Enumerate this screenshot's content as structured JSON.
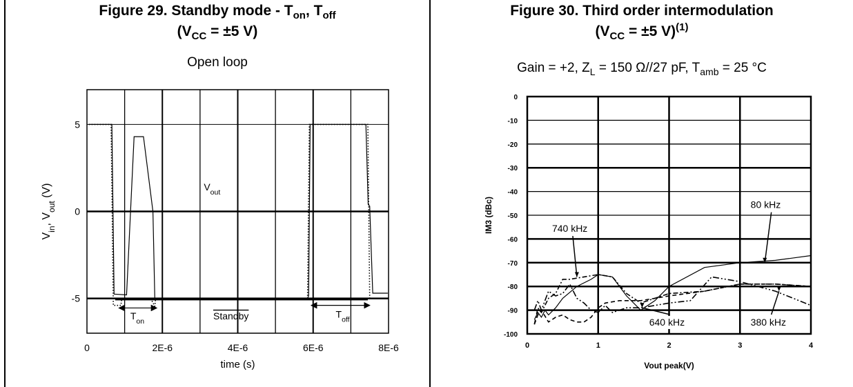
{
  "left": {
    "title": {
      "pre": "Figure 29. Standby mode - T",
      "sub1": "on",
      "mid": ", T",
      "sub2": "off"
    },
    "title2": {
      "pre": "(V",
      "sub": "CC",
      "post": " = ±5 V)"
    },
    "subtitle": "Open loop"
  },
  "right": {
    "title": "Figure 30. Third order intermodulation",
    "title2": {
      "pre": "(V",
      "sub": "CC",
      "post": " = ±5 V)",
      "sup": "(1)"
    },
    "subtitle": {
      "p1": "Gain = +2, Z",
      "s1": "L",
      "p2": " = 150 Ω//27 pF, T",
      "s2": "amb",
      "p3": " = 25 °C"
    }
  },
  "chart_data": [
    {
      "type": "line",
      "title": "",
      "xlabel": "time (s)",
      "ylabel": {
        "v1": "V",
        "s1": "in",
        "mid": ", V",
        "s2": "out",
        "unit": "  (V)"
      },
      "xlim": [
        0,
        8e-06
      ],
      "ylim": [
        -7,
        7
      ],
      "x_ticks": [
        {
          "v": 0,
          "label": "0"
        },
        {
          "v": 2e-06,
          "label": "2E-6"
        },
        {
          "v": 4e-06,
          "label": "4E-6"
        },
        {
          "v": 6e-06,
          "label": "6E-6"
        },
        {
          "v": 8e-06,
          "label": "8E-6"
        }
      ],
      "y_ticks": [
        {
          "v": 5,
          "label": "5"
        },
        {
          "v": 0,
          "label": "0"
        },
        {
          "v": -5,
          "label": "-5"
        }
      ],
      "grid": true,
      "series": [
        {
          "name": "Vout",
          "style": "solid",
          "points": [
            [
              5e-08,
              5
            ],
            [
              6.6e-07,
              5
            ],
            [
              7.2e-07,
              -4.75
            ],
            [
              1.05e-06,
              -4.8
            ],
            [
              1.25e-06,
              4.3
            ],
            [
              1.5e-06,
              4.3
            ],
            [
              1.75e-06,
              0
            ],
            [
              1.8e-06,
              -5
            ],
            [
              5.85e-06,
              -5
            ],
            [
              5.88e-06,
              -4.85
            ],
            [
              5.92e-06,
              5
            ],
            [
              7.4e-06,
              5
            ],
            [
              7.46e-06,
              0.4
            ],
            [
              7.5e-06,
              0.3
            ],
            [
              7.58e-06,
              -4.7
            ],
            [
              7.98e-06,
              -4.7
            ]
          ]
        },
        {
          "name": "Vin",
          "style": "dotted",
          "points": [
            [
              5e-08,
              5
            ],
            [
              6.4e-07,
              5
            ],
            [
              7e-07,
              -5.4
            ],
            [
              9e-07,
              -5.4
            ],
            [
              9.2e-07,
              -5.05
            ],
            [
              1.7e-06,
              -5.05
            ],
            [
              1.8e-06,
              -5.45
            ],
            [
              1.82e-06,
              -5.05
            ],
            [
              5.85e-06,
              -5.05
            ],
            [
              5.9e-06,
              5
            ],
            [
              7.45e-06,
              5
            ],
            [
              7.5e-06,
              -5
            ],
            [
              7.98e-06,
              -5
            ]
          ]
        }
      ],
      "annotations": [
        {
          "text": "V",
          "sub": "out",
          "x": 3.1e-06,
          "y": 1.2
        },
        {
          "text": "T",
          "sub": "on",
          "x": 1.15e-06,
          "y": -6.2
        },
        {
          "text": "Standby",
          "overline": true,
          "x": 3.35e-06,
          "y": -6.2
        },
        {
          "text": "T",
          "sub": "off",
          "x": 6.6e-06,
          "y": -6.1
        }
      ],
      "arrows": [
        {
          "x0": 8.5e-07,
          "x1": 1.85e-06,
          "y": -5.55
        },
        {
          "x0": 5.95e-06,
          "x1": 7.5e-06,
          "y": -5.4
        }
      ],
      "standby_line": {
        "x0": 7.5e-07,
        "x1": 7.45e-06,
        "y": -5.05
      }
    },
    {
      "type": "line",
      "title": "",
      "xlabel": "Vout peak(V)",
      "ylabel": "IM3 (dBc)",
      "xlim": [
        0,
        4
      ],
      "ylim": [
        -100,
        0
      ],
      "x_ticks": [
        "0",
        "1",
        "2",
        "3",
        "4"
      ],
      "y_ticks": [
        "0",
        "-10",
        "-20",
        "-30",
        "-40",
        "-50",
        "-60",
        "-70",
        "-80",
        "-90",
        "-100"
      ],
      "grid": true,
      "series": [
        {
          "name": "80 kHz",
          "style": "solid",
          "x": [
            0.1,
            0.15,
            0.2,
            0.25,
            0.3,
            0.4,
            0.5,
            0.7,
            0.9,
            1.0,
            1.2,
            1.4,
            1.6,
            1.8,
            2.0,
            2.5,
            3.0,
            3.5,
            4.0
          ],
          "y": [
            -94,
            -91,
            -93,
            -90,
            -92,
            -89,
            -85,
            -80,
            -77,
            -75,
            -76,
            -84,
            -90,
            -86,
            -80,
            -72,
            -70,
            -69,
            -67
          ]
        },
        {
          "name": "740 kHz",
          "style": "dashdot",
          "x": [
            0.1,
            0.15,
            0.2,
            0.3,
            0.4,
            0.5,
            0.6,
            0.8,
            1.0,
            1.2,
            1.4,
            1.6,
            1.8,
            2.0,
            2.5,
            3.0,
            3.5,
            4.0
          ],
          "y": [
            -96,
            -89,
            -91,
            -85,
            -83,
            -77,
            -77,
            -76,
            -75,
            -76,
            -83,
            -87,
            -85,
            -83,
            -82,
            -79,
            -79,
            -80
          ]
        },
        {
          "name": "640 kHz",
          "style": "dashed",
          "x": [
            0.1,
            0.15,
            0.2,
            0.3,
            0.4,
            0.5,
            0.6,
            0.7,
            0.8,
            0.9,
            1.0,
            1.1,
            1.3,
            1.6,
            2.0,
            2.5,
            3.0,
            3.5,
            4.0
          ],
          "y": [
            -96,
            -92,
            -90,
            -95,
            -93,
            -92,
            -94,
            -95,
            -95,
            -93,
            -89,
            -87,
            -86,
            -86,
            -84,
            -82,
            -79,
            -79,
            -80
          ]
        },
        {
          "name": "380 kHz",
          "style": "dashdot2",
          "x": [
            0.1,
            0.15,
            0.2,
            0.3,
            0.4,
            0.5,
            0.6,
            0.7,
            0.8,
            0.9,
            1.0,
            1.1,
            1.2,
            1.4,
            1.6,
            2.0,
            2.3,
            2.6,
            3.0,
            3.5,
            4.0
          ],
          "y": [
            -90,
            -86,
            -90,
            -82,
            -84,
            -83,
            -79,
            -85,
            -87,
            -90,
            -91,
            -88,
            -91,
            -89,
            -89,
            -87,
            -86,
            -76,
            -78,
            -82,
            -88
          ]
        }
      ],
      "labels": [
        {
          "text": "740 kHz",
          "x": 0.35,
          "y": -57,
          "arrow_to": [
            0.7,
            -76
          ]
        },
        {
          "text": "80 kHz",
          "x": 3.15,
          "y": -47,
          "arrow_to": [
            3.35,
            -70
          ]
        },
        {
          "text": "640 kHz",
          "x": 1.72,
          "y": -96.5,
          "arrow_to": [
            1.62,
            -89
          ]
        },
        {
          "text": "380 kHz",
          "x": 3.15,
          "y": -96.5,
          "arrow_to": [
            3.55,
            -82
          ]
        }
      ]
    }
  ]
}
